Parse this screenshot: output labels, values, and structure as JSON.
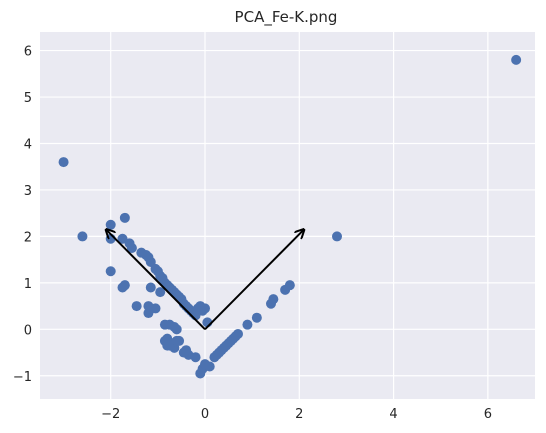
{
  "chart_data": {
    "type": "scatter",
    "title": "PCA_Fe-K.png",
    "xlabel": "",
    "ylabel": "",
    "xlim": [
      -3.5,
      7.0
    ],
    "ylim": [
      -1.5,
      6.4
    ],
    "x_ticks": [
      -2,
      0,
      2,
      4,
      6
    ],
    "y_ticks": [
      -1,
      0,
      1,
      2,
      3,
      4,
      5,
      6
    ],
    "grid": true,
    "background_color": "#eaeaf2",
    "grid_color": "#ffffff",
    "marker_color": "#4c72b0",
    "arrow_color": "#000000",
    "series": [
      {
        "x": [
          6.6,
          -3.0,
          -2.6,
          -2.0,
          -1.7,
          -2.0,
          -1.75,
          -1.6,
          -1.55,
          -1.35,
          -1.25,
          -1.2,
          -1.15,
          -1.05,
          -1.0,
          -0.95,
          -0.9,
          -0.85,
          -0.8,
          -0.75,
          -0.7,
          -0.65,
          -0.6,
          -0.55,
          -0.5,
          -0.45,
          -0.4,
          -0.35,
          -0.3,
          -0.25,
          -0.2,
          -0.15,
          -0.1,
          -0.05,
          0.0,
          0.05,
          -2.0,
          -1.7,
          -1.75,
          -1.45,
          -1.2,
          -1.15,
          -1.05,
          -0.95,
          -0.85,
          -0.75,
          -0.8,
          -0.7,
          -0.65,
          -0.85,
          -0.8,
          -0.75,
          -0.6,
          -0.55,
          -0.45,
          -0.35,
          -0.4,
          -0.2,
          -0.1,
          -0.05,
          0.0,
          0.1,
          0.2,
          0.25,
          0.3,
          0.35,
          0.4,
          0.45,
          0.5,
          0.55,
          0.6,
          0.65,
          0.7,
          0.9,
          1.1,
          1.4,
          1.45,
          1.7,
          1.8,
          2.8,
          -0.6,
          -0.65,
          -1.2
        ],
        "y": [
          5.8,
          3.6,
          2.0,
          2.25,
          2.4,
          1.95,
          1.95,
          1.85,
          1.75,
          1.65,
          1.6,
          1.55,
          1.45,
          1.3,
          1.25,
          1.15,
          1.1,
          1.0,
          0.95,
          0.9,
          0.85,
          0.8,
          0.75,
          0.7,
          0.65,
          0.55,
          0.5,
          0.45,
          0.4,
          0.35,
          0.3,
          0.45,
          0.5,
          0.4,
          0.45,
          0.15,
          1.25,
          0.95,
          0.9,
          0.5,
          0.5,
          0.9,
          0.45,
          0.8,
          0.1,
          0.1,
          -0.2,
          -0.3,
          -0.4,
          -0.25,
          -0.35,
          -0.35,
          -0.25,
          -0.25,
          -0.5,
          -0.55,
          -0.45,
          -0.6,
          -0.95,
          -0.85,
          -0.75,
          -0.8,
          -0.6,
          -0.55,
          -0.5,
          -0.45,
          -0.4,
          -0.35,
          -0.3,
          -0.25,
          -0.2,
          -0.15,
          -0.1,
          0.1,
          0.25,
          0.55,
          0.65,
          0.85,
          0.95,
          2.0,
          0.0,
          0.05,
          0.35
        ]
      }
    ],
    "arrows": [
      {
        "x0": 0.0,
        "y0": 0.0,
        "x1": -2.1,
        "y1": 2.15
      },
      {
        "x0": 0.0,
        "y0": 0.0,
        "x1": 2.1,
        "y1": 2.15
      }
    ]
  }
}
